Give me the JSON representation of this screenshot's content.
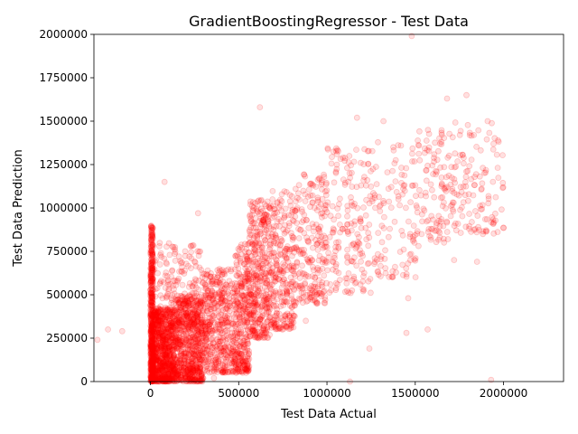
{
  "chart_data": {
    "type": "scatter",
    "title": "GradientBoostingRegressor - Test Data",
    "xlabel": "Test Data Actual",
    "ylabel": "Test Data Prediction",
    "xlim": [
      -320000,
      2340000
    ],
    "ylim": [
      0,
      2000000
    ],
    "xticks": [
      0,
      500000,
      1000000,
      1500000,
      2000000
    ],
    "xtick_labels": [
      "0",
      "500000",
      "1000000",
      "1500000",
      "2000000"
    ],
    "yticks": [
      0,
      250000,
      500000,
      750000,
      1000000,
      1250000,
      1500000,
      1750000,
      2000000
    ],
    "ytick_labels": [
      "0",
      "250000",
      "500000",
      "750000",
      "1000000",
      "1250000",
      "1500000",
      "1750000",
      "2000000"
    ],
    "grid": false,
    "legend": "none",
    "marker_color": "#ff0000",
    "marker_alpha": 0.12,
    "series": [
      {
        "points": [
          [
            -300000,
            240000
          ],
          [
            -240000,
            300000
          ],
          [
            -160000,
            290000
          ],
          [
            80000,
            1150000
          ],
          [
            270000,
            970000
          ],
          [
            620000,
            1580000
          ],
          [
            1170000,
            1520000
          ],
          [
            1480000,
            1990000
          ],
          [
            1680000,
            1630000
          ],
          [
            1790000,
            1650000
          ],
          [
            1930000,
            10000
          ],
          [
            1910000,
            1500000
          ],
          [
            1460000,
            480000
          ],
          [
            1240000,
            190000
          ],
          [
            1130000,
            0
          ],
          [
            540000,
            60000
          ],
          [
            360000,
            20000
          ],
          [
            1570000,
            300000
          ],
          [
            1720000,
            700000
          ],
          [
            1850000,
            690000
          ],
          [
            990000,
            470000
          ],
          [
            880000,
            350000
          ],
          [
            1320000,
            1500000
          ],
          [
            1450000,
            280000
          ]
        ],
        "clusters": [
          {
            "x": [
              0,
              15000
            ],
            "y": [
              0,
              900000
            ],
            "n": 420
          },
          {
            "x": [
              0,
              140000
            ],
            "y": [
              0,
              420000
            ],
            "n": 900
          },
          {
            "x": [
              140000,
              300000
            ],
            "y": [
              0,
              500000
            ],
            "n": 700
          },
          {
            "x": [
              20000,
              300000
            ],
            "y": [
              300000,
              800000
            ],
            "n": 200
          },
          {
            "x": [
              300000,
              480000
            ],
            "y": [
              50000,
              650000
            ],
            "n": 450
          },
          {
            "x": [
              480000,
              560000
            ],
            "y": [
              50000,
              800000
            ],
            "n": 300
          },
          {
            "x": [
              560000,
              680000
            ],
            "y": [
              250000,
              1050000
            ],
            "n": 380
          },
          {
            "x": [
              680000,
              820000
            ],
            "y": [
              300000,
              1100000
            ],
            "n": 280
          },
          {
            "x": [
              820000,
              1000000
            ],
            "y": [
              450000,
              1200000
            ],
            "n": 220
          },
          {
            "x": [
              1000000,
              1250000
            ],
            "y": [
              500000,
              1350000
            ],
            "n": 180
          },
          {
            "x": [
              1250000,
              1520000
            ],
            "y": [
              600000,
              1400000
            ],
            "n": 120
          },
          {
            "x": [
              1520000,
              1700000
            ],
            "y": [
              800000,
              1450000
            ],
            "n": 100
          },
          {
            "x": [
              1700000,
              2000000
            ],
            "y": [
              850000,
              1500000
            ],
            "n": 130
          }
        ]
      }
    ]
  }
}
